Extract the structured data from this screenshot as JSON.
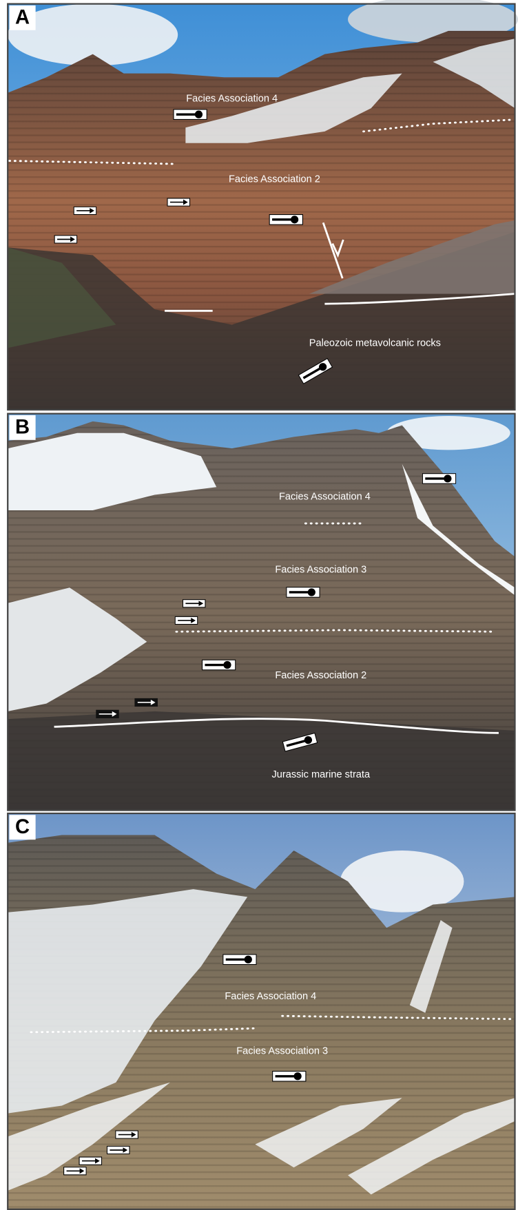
{
  "panels": [
    {
      "label": "A",
      "annotations": [
        "Facies Association 4",
        "Facies Association 2",
        "Paleozoic metavolcanic rocks"
      ]
    },
    {
      "label": "B",
      "annotations": [
        "Facies Association 4",
        "Facies Association 3",
        "Facies Association 2",
        "Jurassic marine strata"
      ]
    },
    {
      "label": "C",
      "annotations": [
        "Facies Association 4",
        "Facies Association 3"
      ]
    }
  ]
}
